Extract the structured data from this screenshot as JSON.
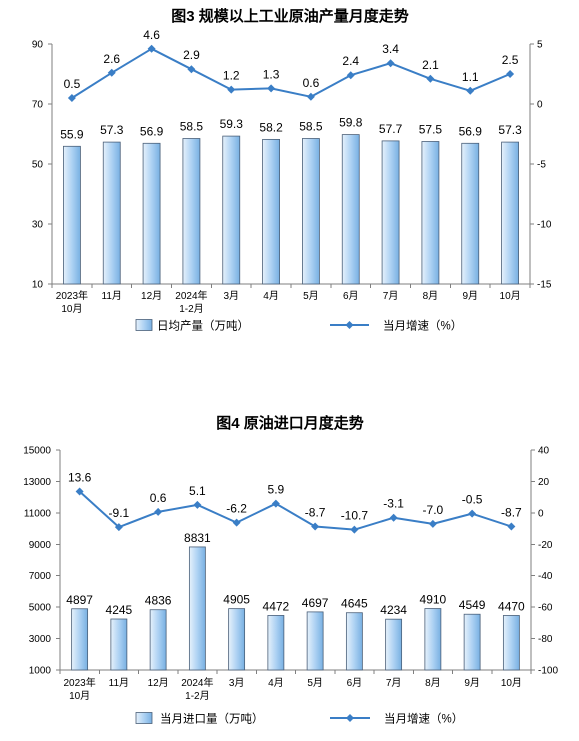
{
  "chart_data": [
    {
      "type": "bar",
      "title": "图3 规模以上工业原油产量月度走势",
      "categories": [
        "2023年\n10月",
        "11月",
        "12月",
        "2024年\n1-2月",
        "3月",
        "4月",
        "5月",
        "6月",
        "7月",
        "8月",
        "9月",
        "10月"
      ],
      "y_left": {
        "lim": [
          10,
          90
        ],
        "ticks": [
          10,
          30,
          50,
          70,
          90
        ]
      },
      "y_right": {
        "lim": [
          -15,
          5
        ],
        "ticks": [
          -15,
          -10,
          -5,
          0,
          5
        ]
      },
      "series": [
        {
          "name": "日均产量（万吨）",
          "type": "bar",
          "axis": "left",
          "values": [
            55.9,
            57.3,
            56.9,
            58.5,
            59.3,
            58.2,
            58.5,
            59.8,
            57.7,
            57.5,
            56.9,
            57.3
          ]
        },
        {
          "name": "当月增速（%）",
          "type": "line",
          "axis": "right",
          "values": [
            0.5,
            2.6,
            4.6,
            2.9,
            1.2,
            1.3,
            0.6,
            2.4,
            3.4,
            2.1,
            1.1,
            2.5
          ]
        }
      ],
      "grid": false,
      "legend": "bottom"
    },
    {
      "type": "bar",
      "title": "图4 原油进口月度走势",
      "categories": [
        "2023年\n10月",
        "11月",
        "12月",
        "2024年\n1-2月",
        "3月",
        "4月",
        "5月",
        "6月",
        "7月",
        "8月",
        "9月",
        "10月"
      ],
      "y_left": {
        "lim": [
          1000,
          15000
        ],
        "ticks": [
          1000,
          3000,
          5000,
          7000,
          9000,
          11000,
          13000,
          15000
        ]
      },
      "y_right": {
        "lim": [
          -100,
          40
        ],
        "ticks": [
          -100,
          -80,
          -60,
          -40,
          -20,
          0,
          20,
          40
        ]
      },
      "series": [
        {
          "name": "当月进口量（万吨）",
          "type": "bar",
          "axis": "left",
          "values": [
            4897,
            4245,
            4836,
            8831,
            4905,
            4472,
            4697,
            4645,
            4234,
            4910,
            4549,
            4470
          ]
        },
        {
          "name": "当月增速（%）",
          "type": "line",
          "axis": "right",
          "values": [
            13.6,
            -9.1,
            0.6,
            5.1,
            -6.2,
            5.9,
            -8.7,
            -10.7,
            -3.1,
            -7.0,
            -0.5,
            -8.7
          ]
        }
      ],
      "grid": false,
      "legend": "bottom"
    }
  ],
  "colors": {
    "bar_fill": "#aed2f3",
    "bar_fill_dark": "#78b0e2",
    "bar_edge": "#4a5f78",
    "line": "#3a7ec6",
    "axis": "#7f7f7f"
  }
}
